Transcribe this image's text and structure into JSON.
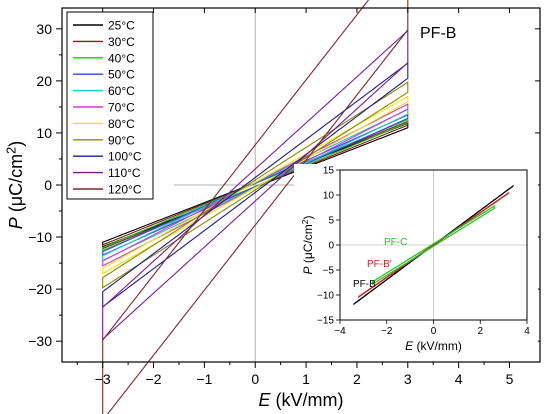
{
  "chart_data": [
    {
      "type": "line",
      "annotation": "PF-B",
      "xlabel": "E (kV/mm)",
      "ylabel": "P (μC/cm²)",
      "xlim": [
        -3.8,
        5.6
      ],
      "ylim": [
        -34,
        34
      ],
      "xticks": [
        -3,
        -2,
        -1,
        0,
        1,
        2,
        3,
        4,
        5
      ],
      "yticks": [
        -30,
        -20,
        -10,
        0,
        10,
        20,
        30
      ],
      "legend_position": "top-left",
      "series": [
        {
          "name": "25°C",
          "color": "#000000",
          "Pmax": 11.0,
          "Pr": 3.0,
          "Ec": 0.9
        },
        {
          "name": "30°C",
          "color": "#8b1a1a",
          "Pmax": 11.5,
          "Pr": 3.2,
          "Ec": 0.9
        },
        {
          "name": "40°C",
          "color": "#1fc41f",
          "Pmax": 12.0,
          "Pr": 3.4,
          "Ec": 0.9
        },
        {
          "name": "50°C",
          "color": "#3b3bff",
          "Pmax": 12.8,
          "Pr": 3.7,
          "Ec": 0.92
        },
        {
          "name": "60°C",
          "color": "#1ec8c8",
          "Pmax": 13.6,
          "Pr": 4.0,
          "Ec": 0.95
        },
        {
          "name": "70°C",
          "color": "#d23cd2",
          "Pmax": 14.6,
          "Pr": 4.4,
          "Ec": 0.97
        },
        {
          "name": "80°C",
          "color": "#e8e800",
          "Pmax": 16.0,
          "Pr": 5.0,
          "Ec": 1.0
        },
        {
          "name": "90°C",
          "color": "#8b8b00",
          "Pmax": 17.8,
          "Pr": 5.6,
          "Ec": 1.05
        },
        {
          "name": "100°C",
          "color": "#1f1f8f",
          "Pmax": 20.5,
          "Pr": 6.6,
          "Ec": 1.1
        },
        {
          "name": "110°C",
          "color": "#7a1a9a",
          "Pmax": 23.5,
          "Pr": 8.0,
          "Ec": 1.25
        },
        {
          "name": "120°C",
          "color": "#7a2a2a",
          "Pmax": 29.8,
          "Pr": 9.8,
          "Ec": 1.4
        }
      ],
      "Emax": 3.0
    },
    {
      "type": "line",
      "xlabel": "E (kV/mm)",
      "ylabel": "P (μC/cm²)",
      "xlim": [
        -4,
        4
      ],
      "ylim": [
        -15,
        15
      ],
      "xticks": [
        -4,
        -2,
        0,
        2,
        4
      ],
      "yticks": [
        -15,
        -10,
        -5,
        0,
        5,
        10,
        15
      ],
      "series": [
        {
          "name": "PF-B",
          "label": "PF-B",
          "color": "#000000",
          "Emax": 3.4,
          "Pmax": 11.8,
          "Pr": 4.0,
          "Ec": 1.15
        },
        {
          "name": "PF-B'",
          "label": "PF-B'",
          "color": "#d62020",
          "Emax": 3.2,
          "Pmax": 10.4,
          "Pr": 3.6,
          "Ec": 1.1
        },
        {
          "name": "PF-C",
          "label": "PF-C",
          "color": "#1fc41f",
          "Emax": 2.6,
          "Pmax": 7.8,
          "Pr": 3.0,
          "Ec": 0.95
        }
      ]
    }
  ]
}
